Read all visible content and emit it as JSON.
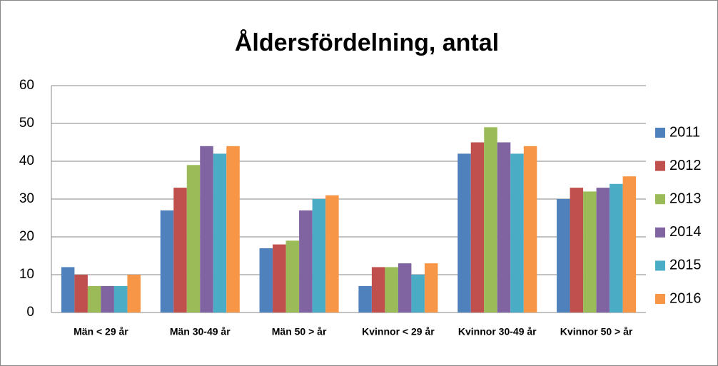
{
  "chart_data": {
    "type": "bar",
    "title": "Åldersfördelning, antal",
    "categories": [
      "Män < 29 år",
      "Män 30-49 år",
      "Män 50 > år",
      "Kvinnor < 29 år",
      "Kvinnor 30-49 år",
      "Kvinnor 50 > år"
    ],
    "series": [
      {
        "name": "2011",
        "color": "#4F81BD",
        "values": [
          12,
          27,
          17,
          7,
          42,
          30
        ]
      },
      {
        "name": "2012",
        "color": "#C0504D",
        "values": [
          10,
          33,
          18,
          12,
          45,
          33
        ]
      },
      {
        "name": "2013",
        "color": "#9BBB59",
        "values": [
          7,
          39,
          19,
          12,
          49,
          32
        ]
      },
      {
        "name": "2014",
        "color": "#8064A2",
        "values": [
          7,
          44,
          27,
          13,
          45,
          33
        ]
      },
      {
        "name": "2015",
        "color": "#4BACC6",
        "values": [
          7,
          42,
          30,
          10,
          42,
          34
        ]
      },
      {
        "name": "2016",
        "color": "#F79646",
        "values": [
          10,
          44,
          31,
          13,
          44,
          36
        ]
      }
    ],
    "ylim": [
      0,
      60
    ],
    "yticks": [
      0,
      10,
      20,
      30,
      40,
      50,
      60
    ],
    "grid": true,
    "legend": "right"
  }
}
